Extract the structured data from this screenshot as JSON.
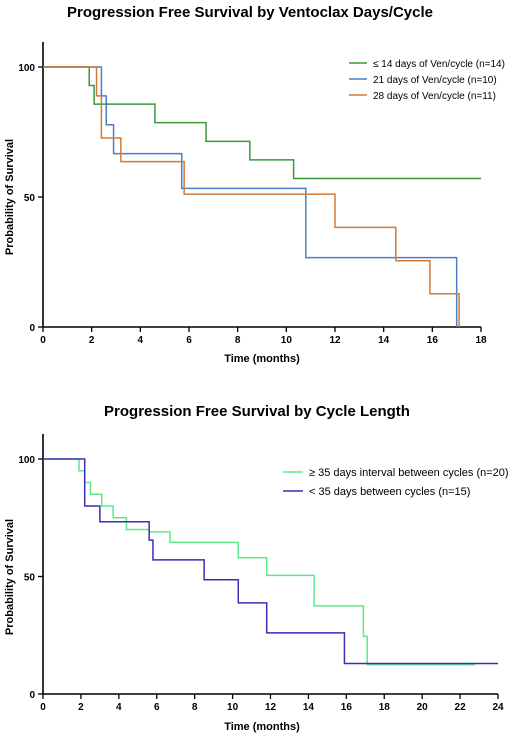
{
  "chart_data": [
    {
      "type": "line",
      "step": true,
      "title": "Progression Free Survival by Ventoclax Days/Cycle",
      "xlabel": "Time (months)",
      "ylabel": "Probability of Survival",
      "xlim": [
        0,
        18
      ],
      "ylim": [
        0,
        100
      ],
      "xticks": [
        "0",
        "2",
        "4",
        "6",
        "8",
        "10",
        "12",
        "14",
        "16",
        "18"
      ],
      "yticks": [
        "0",
        "50",
        "100"
      ],
      "legend_position": "top-right",
      "series": [
        {
          "name": "≤ 14 days of Ven/cycle (n=14)",
          "color": "#3a9a3a",
          "x": [
            0,
            1.9,
            2.1,
            4.6,
            6.7,
            8.5,
            10.3,
            18
          ],
          "y": [
            100,
            92.9,
            85.7,
            78.6,
            71.4,
            64.3,
            57.1,
            57.1
          ]
        },
        {
          "name": "21 days of Ven/cycle (n=10)",
          "color": "#4a7fc8",
          "x": [
            0,
            2.4,
            2.6,
            2.9,
            3.2,
            5.7,
            10.8,
            17.0
          ],
          "y": [
            100,
            88.9,
            77.8,
            66.7,
            66.7,
            53.3,
            26.7,
            0
          ]
        },
        {
          "name": "28 days of Ven/cycle (n=11)",
          "color": "#d07a35",
          "x": [
            0,
            2.2,
            2.4,
            3.2,
            5.8,
            12.0,
            14.5,
            15.9,
            17.1
          ],
          "y": [
            100,
            88.9,
            72.7,
            63.6,
            51.1,
            38.3,
            25.5,
            12.8,
            0
          ]
        }
      ]
    },
    {
      "type": "line",
      "step": true,
      "title": "Progression Free Survival by Cycle Length",
      "xlabel": "Time (months)",
      "ylabel": "Probability of Survival",
      "xlim": [
        0,
        24
      ],
      "ylim": [
        0,
        100
      ],
      "xticks": [
        "0",
        "2",
        "4",
        "6",
        "8",
        "10",
        "12",
        "14",
        "16",
        "18",
        "20",
        "22",
        "24"
      ],
      "yticks": [
        "0",
        "50",
        "100"
      ],
      "legend_position": "top-right",
      "series": [
        {
          "name": "≥ 35 days interval between cycles (n=20)",
          "color": "#5fe88a",
          "x": [
            0,
            1.9,
            2.2,
            2.5,
            3.1,
            3.7,
            4.4,
            5.6,
            6.7,
            10.3,
            11.8,
            14.3,
            16.9,
            17.1,
            22.8
          ],
          "y": [
            100,
            95,
            90,
            85,
            80,
            75,
            70,
            69,
            64.5,
            58,
            50.5,
            37.5,
            24.5,
            12.5,
            12.5
          ]
        },
        {
          "name": "< 35 days between cycles (n=15)",
          "color": "#3a2fb5",
          "x": [
            0,
            2.2,
            2.4,
            3.0,
            5.6,
            5.8,
            8.5,
            10.3,
            11.8,
            15.9,
            24
          ],
          "y": [
            100,
            80,
            80,
            73.3,
            65.5,
            57.1,
            48.6,
            38.8,
            26,
            13,
            13
          ]
        }
      ]
    }
  ]
}
